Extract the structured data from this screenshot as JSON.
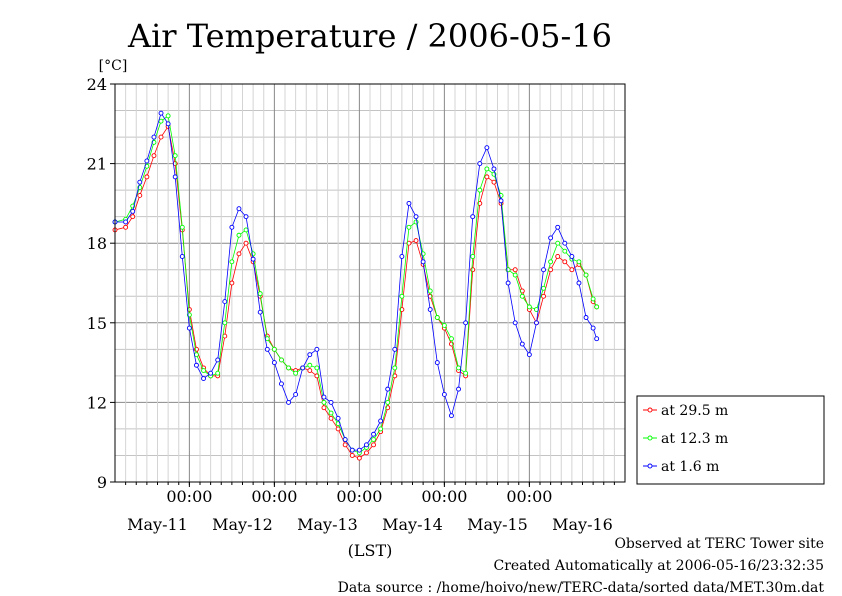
{
  "chart_data": {
    "type": "line",
    "title": "Air Temperature / 2006-05-16",
    "ylabel": "[°C]",
    "xlabel": "(LST)",
    "ylim": [
      9,
      24
    ],
    "yticks": [
      9,
      12,
      15,
      18,
      21,
      24
    ],
    "x_range_hours": [
      0,
      144
    ],
    "x_ticks": [
      {
        "hour": 21,
        "label": "00:00"
      },
      {
        "hour": 45,
        "label": "00:00"
      },
      {
        "hour": 69,
        "label": "00:00"
      },
      {
        "hour": 93,
        "label": "00:00"
      },
      {
        "hour": 117,
        "label": "00:00"
      }
    ],
    "date_labels": [
      {
        "hour": 12,
        "label": "May-11"
      },
      {
        "hour": 36,
        "label": "May-12"
      },
      {
        "hour": 60,
        "label": "May-13"
      },
      {
        "hour": 84,
        "label": "May-14"
      },
      {
        "hour": 108,
        "label": "May-15"
      },
      {
        "hour": 132,
        "label": "May-16"
      }
    ],
    "grid": true,
    "legend_position": "right",
    "series": [
      {
        "name": "at 29.5 m",
        "color": "#ff0000",
        "points": [
          [
            0,
            18.5
          ],
          [
            3,
            18.6
          ],
          [
            5,
            19.0
          ],
          [
            7,
            19.8
          ],
          [
            9,
            20.5
          ],
          [
            11,
            21.3
          ],
          [
            13,
            22.0
          ],
          [
            15,
            22.4
          ],
          [
            17,
            21.0
          ],
          [
            19,
            18.5
          ],
          [
            21,
            15.5
          ],
          [
            23,
            14.0
          ],
          [
            25,
            13.3
          ],
          [
            27,
            13.0
          ],
          [
            29,
            13.0
          ],
          [
            31,
            14.5
          ],
          [
            33,
            16.5
          ],
          [
            35,
            17.6
          ],
          [
            37,
            18.0
          ],
          [
            39,
            17.3
          ],
          [
            41,
            16.0
          ],
          [
            43,
            14.5
          ],
          [
            45,
            14.0
          ],
          [
            47,
            13.6
          ],
          [
            49,
            13.3
          ],
          [
            51,
            13.2
          ],
          [
            53,
            13.3
          ],
          [
            55,
            13.2
          ],
          [
            57,
            13.0
          ],
          [
            59,
            11.8
          ],
          [
            61,
            11.4
          ],
          [
            63,
            11.0
          ],
          [
            65,
            10.4
          ],
          [
            67,
            10.0
          ],
          [
            69,
            9.9
          ],
          [
            71,
            10.1
          ],
          [
            73,
            10.4
          ],
          [
            75,
            10.9
          ],
          [
            77,
            11.8
          ],
          [
            79,
            13.0
          ],
          [
            81,
            15.5
          ],
          [
            83,
            18.0
          ],
          [
            85,
            18.1
          ],
          [
            87,
            17.2
          ],
          [
            89,
            16.0
          ],
          [
            91,
            15.2
          ],
          [
            93,
            14.8
          ],
          [
            95,
            14.2
          ],
          [
            97,
            13.2
          ],
          [
            99,
            13.0
          ],
          [
            101,
            17.0
          ],
          [
            103,
            19.5
          ],
          [
            105,
            20.5
          ],
          [
            107,
            20.3
          ],
          [
            109,
            19.5
          ],
          [
            111,
            17.0
          ],
          [
            113,
            17.0
          ],
          [
            115,
            16.2
          ],
          [
            117,
            15.5
          ],
          [
            119,
            15.0
          ],
          [
            121,
            16.0
          ],
          [
            123,
            17.0
          ],
          [
            125,
            17.5
          ],
          [
            127,
            17.3
          ],
          [
            129,
            17.0
          ],
          [
            131,
            17.2
          ],
          [
            133,
            16.8
          ],
          [
            135,
            15.8
          ],
          [
            136,
            15.6
          ]
        ]
      },
      {
        "name": "at 12.3 m",
        "color": "#00ff00",
        "points": [
          [
            0,
            18.8
          ],
          [
            3,
            18.9
          ],
          [
            5,
            19.4
          ],
          [
            7,
            20.1
          ],
          [
            9,
            20.9
          ],
          [
            11,
            21.8
          ],
          [
            13,
            22.6
          ],
          [
            15,
            22.8
          ],
          [
            17,
            21.3
          ],
          [
            19,
            18.6
          ],
          [
            21,
            15.3
          ],
          [
            23,
            13.8
          ],
          [
            25,
            13.2
          ],
          [
            27,
            13.0
          ],
          [
            29,
            13.1
          ],
          [
            31,
            15.0
          ],
          [
            33,
            17.3
          ],
          [
            35,
            18.3
          ],
          [
            37,
            18.5
          ],
          [
            39,
            17.6
          ],
          [
            41,
            16.1
          ],
          [
            43,
            14.4
          ],
          [
            45,
            14.0
          ],
          [
            47,
            13.6
          ],
          [
            49,
            13.3
          ],
          [
            51,
            13.1
          ],
          [
            53,
            13.3
          ],
          [
            55,
            13.4
          ],
          [
            57,
            13.3
          ],
          [
            59,
            12.0
          ],
          [
            61,
            11.6
          ],
          [
            63,
            11.2
          ],
          [
            65,
            10.6
          ],
          [
            67,
            10.2
          ],
          [
            69,
            10.1
          ],
          [
            71,
            10.3
          ],
          [
            73,
            10.6
          ],
          [
            75,
            11.0
          ],
          [
            77,
            12.0
          ],
          [
            79,
            13.3
          ],
          [
            81,
            16.0
          ],
          [
            83,
            18.6
          ],
          [
            85,
            18.8
          ],
          [
            87,
            17.6
          ],
          [
            89,
            16.2
          ],
          [
            91,
            15.2
          ],
          [
            93,
            14.9
          ],
          [
            95,
            14.4
          ],
          [
            97,
            13.3
          ],
          [
            99,
            13.1
          ],
          [
            101,
            17.5
          ],
          [
            103,
            20.0
          ],
          [
            105,
            20.8
          ],
          [
            107,
            20.6
          ],
          [
            109,
            19.8
          ],
          [
            111,
            17.0
          ],
          [
            113,
            16.8
          ],
          [
            115,
            16.0
          ],
          [
            117,
            15.6
          ],
          [
            119,
            15.5
          ],
          [
            121,
            16.3
          ],
          [
            123,
            17.3
          ],
          [
            125,
            18.0
          ],
          [
            127,
            17.7
          ],
          [
            129,
            17.4
          ],
          [
            131,
            17.3
          ],
          [
            133,
            16.8
          ],
          [
            135,
            15.9
          ],
          [
            136,
            15.6
          ]
        ]
      },
      {
        "name": "at 1.6 m",
        "color": "#0000ff",
        "points": [
          [
            0,
            18.8
          ],
          [
            3,
            18.8
          ],
          [
            5,
            19.2
          ],
          [
            7,
            20.3
          ],
          [
            9,
            21.1
          ],
          [
            11,
            22.0
          ],
          [
            13,
            22.9
          ],
          [
            15,
            22.5
          ],
          [
            17,
            20.5
          ],
          [
            19,
            17.5
          ],
          [
            21,
            14.8
          ],
          [
            23,
            13.4
          ],
          [
            25,
            12.9
          ],
          [
            27,
            13.1
          ],
          [
            29,
            13.6
          ],
          [
            31,
            15.8
          ],
          [
            33,
            18.6
          ],
          [
            35,
            19.3
          ],
          [
            37,
            19.0
          ],
          [
            39,
            17.4
          ],
          [
            41,
            15.4
          ],
          [
            43,
            14.0
          ],
          [
            45,
            13.5
          ],
          [
            47,
            12.7
          ],
          [
            49,
            12.0
          ],
          [
            51,
            12.3
          ],
          [
            53,
            13.3
          ],
          [
            55,
            13.8
          ],
          [
            57,
            14.0
          ],
          [
            59,
            12.2
          ],
          [
            61,
            12.0
          ],
          [
            63,
            11.4
          ],
          [
            65,
            10.6
          ],
          [
            67,
            10.2
          ],
          [
            69,
            10.2
          ],
          [
            71,
            10.4
          ],
          [
            73,
            10.8
          ],
          [
            75,
            11.3
          ],
          [
            77,
            12.5
          ],
          [
            79,
            14.0
          ],
          [
            81,
            17.5
          ],
          [
            83,
            19.5
          ],
          [
            85,
            19.0
          ],
          [
            87,
            17.3
          ],
          [
            89,
            15.5
          ],
          [
            91,
            13.5
          ],
          [
            93,
            12.3
          ],
          [
            95,
            11.5
          ],
          [
            97,
            12.5
          ],
          [
            99,
            15.0
          ],
          [
            101,
            19.0
          ],
          [
            103,
            21.0
          ],
          [
            105,
            21.6
          ],
          [
            107,
            20.8
          ],
          [
            109,
            19.6
          ],
          [
            111,
            16.5
          ],
          [
            113,
            15.0
          ],
          [
            115,
            14.2
          ],
          [
            117,
            13.8
          ],
          [
            119,
            15.0
          ],
          [
            121,
            17.0
          ],
          [
            123,
            18.2
          ],
          [
            125,
            18.6
          ],
          [
            127,
            18.0
          ],
          [
            129,
            17.5
          ],
          [
            131,
            16.5
          ],
          [
            133,
            15.2
          ],
          [
            135,
            14.8
          ],
          [
            136,
            14.4
          ]
        ]
      }
    ]
  },
  "footer": {
    "observed": "Observed at TERC Tower site",
    "created": "Created Automatically at 2006-05-16/23:32:35",
    "source": "Data source : /home/hoivo/new/TERC-data/sorted  data/MET.30m.dat"
  }
}
